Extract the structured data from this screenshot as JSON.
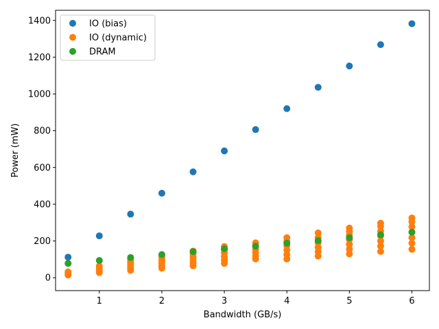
{
  "chart_data": {
    "type": "scatter",
    "title": "",
    "xlabel": "Bandwidth (GB/s)",
    "ylabel": "Power (mW)",
    "xlim": [
      0.3,
      6.28
    ],
    "ylim": [
      -70,
      1455
    ],
    "xticks": [
      1,
      2,
      3,
      4,
      5,
      6
    ],
    "yticks": [
      0,
      200,
      400,
      600,
      800,
      1000,
      1200,
      1400
    ],
    "grid": false,
    "legend": "top-left",
    "series": [
      {
        "name": "IO (bias)",
        "color": "#1f77b4",
        "points": [
          [
            0.5,
            112
          ],
          [
            1,
            228
          ],
          [
            1.5,
            346
          ],
          [
            2,
            460
          ],
          [
            2.5,
            576
          ],
          [
            3,
            690
          ],
          [
            3.5,
            806
          ],
          [
            4,
            920
          ],
          [
            4.5,
            1036
          ],
          [
            5,
            1152
          ],
          [
            5.5,
            1268
          ],
          [
            6,
            1382
          ]
        ]
      },
      {
        "name": "IO (dynamic)",
        "color": "#ff7f0e",
        "points": [
          [
            0.5,
            15
          ],
          [
            0.5,
            20
          ],
          [
            0.5,
            27
          ],
          [
            0.5,
            32
          ],
          [
            1,
            28
          ],
          [
            1,
            36
          ],
          [
            1,
            45
          ],
          [
            1,
            55
          ],
          [
            1,
            64
          ],
          [
            1.5,
            40
          ],
          [
            1.5,
            50
          ],
          [
            1.5,
            60
          ],
          [
            1.5,
            72
          ],
          [
            1.5,
            82
          ],
          [
            1.5,
            96
          ],
          [
            2,
            52
          ],
          [
            2,
            64
          ],
          [
            2,
            78
          ],
          [
            2,
            92
          ],
          [
            2,
            106
          ],
          [
            2,
            120
          ],
          [
            2.5,
            65
          ],
          [
            2.5,
            80
          ],
          [
            2.5,
            97
          ],
          [
            2.5,
            113
          ],
          [
            2.5,
            130
          ],
          [
            2.5,
            145
          ],
          [
            3,
            78
          ],
          [
            3,
            96
          ],
          [
            3,
            115
          ],
          [
            3,
            134
          ],
          [
            3,
            152
          ],
          [
            3,
            170
          ],
          [
            3.5,
            102
          ],
          [
            3.5,
            118
          ],
          [
            3.5,
            137
          ],
          [
            3.5,
            155
          ],
          [
            3.5,
            173
          ],
          [
            3.5,
            190
          ],
          [
            4,
            102
          ],
          [
            4,
            126
          ],
          [
            4,
            150
          ],
          [
            4,
            174
          ],
          [
            4,
            198
          ],
          [
            4,
            218
          ],
          [
            4.5,
            118
          ],
          [
            4.5,
            142
          ],
          [
            4.5,
            166
          ],
          [
            4.5,
            190
          ],
          [
            4.5,
            218
          ],
          [
            4.5,
            244
          ],
          [
            5,
            130
          ],
          [
            5,
            156
          ],
          [
            5,
            182
          ],
          [
            5,
            208
          ],
          [
            5,
            232
          ],
          [
            5,
            252
          ],
          [
            5,
            270
          ],
          [
            5.5,
            143
          ],
          [
            5.5,
            172
          ],
          [
            5.5,
            200
          ],
          [
            5.5,
            228
          ],
          [
            5.5,
            254
          ],
          [
            5.5,
            280
          ],
          [
            5.5,
            297
          ],
          [
            6,
            155
          ],
          [
            6,
            188
          ],
          [
            6,
            218
          ],
          [
            6,
            248
          ],
          [
            6,
            278
          ],
          [
            6,
            305
          ],
          [
            6,
            325
          ]
        ]
      },
      {
        "name": "DRAM",
        "color": "#2ca02c",
        "points": [
          [
            0.5,
            78
          ],
          [
            1,
            94
          ],
          [
            1.5,
            110
          ],
          [
            2,
            126
          ],
          [
            2.5,
            142
          ],
          [
            3,
            158
          ],
          [
            3.5,
            172
          ],
          [
            4,
            188
          ],
          [
            4.5,
            202
          ],
          [
            5,
            218
          ],
          [
            5.5,
            234
          ],
          [
            6,
            248
          ]
        ]
      }
    ]
  }
}
